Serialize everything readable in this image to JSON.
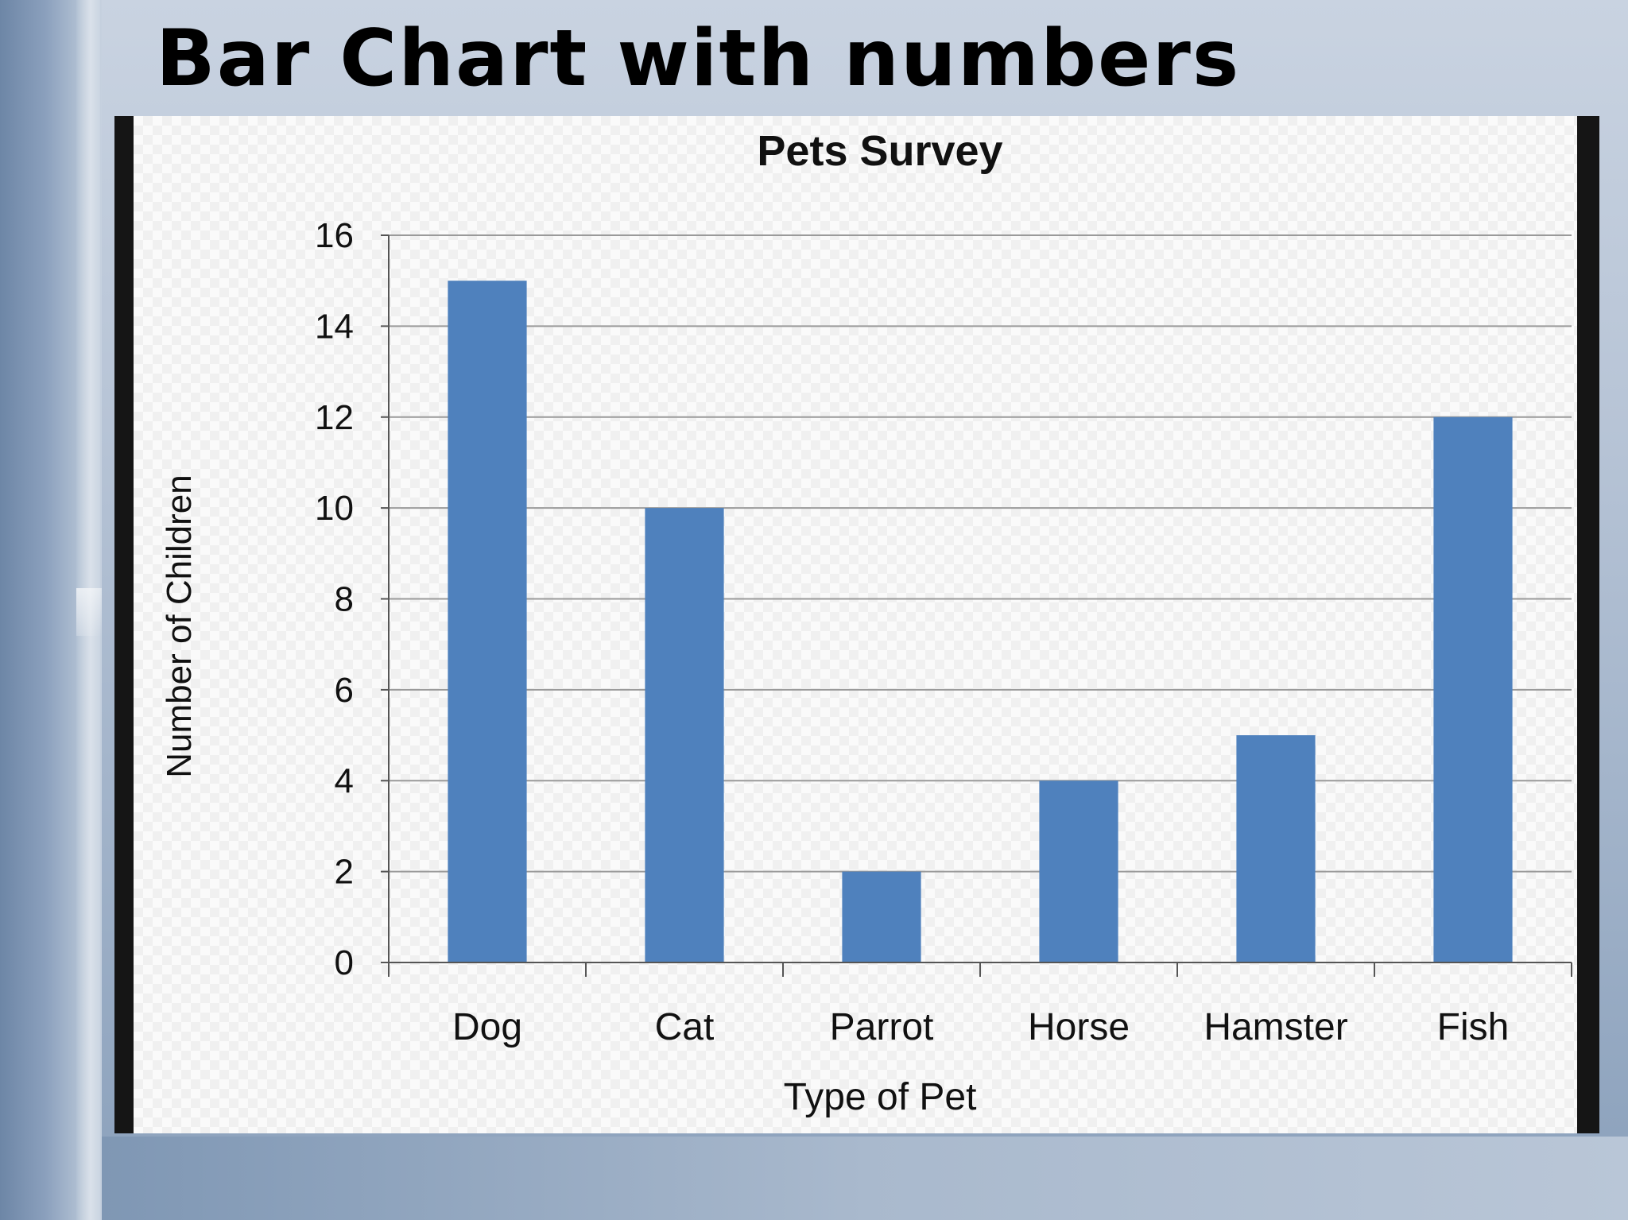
{
  "slide": {
    "title": "Bar Chart with numbers"
  },
  "colors": {
    "bar": "#4f81bd",
    "grid": "#9a9a9a",
    "frame": "#151515"
  },
  "chart_data": {
    "type": "bar",
    "title": "Pets Survey",
    "xlabel": "Type of Pet",
    "ylabel": "Number of Children",
    "categories": [
      "Dog",
      "Cat",
      "Parrot",
      "Horse",
      "Hamster",
      "Fish"
    ],
    "values": [
      15,
      10,
      2,
      4,
      5,
      12
    ],
    "ylim": [
      0,
      16
    ],
    "yticks": [
      "0",
      "2",
      "4",
      "6",
      "8",
      "10",
      "12",
      "14",
      "16"
    ],
    "grid": true,
    "legend": "none"
  }
}
